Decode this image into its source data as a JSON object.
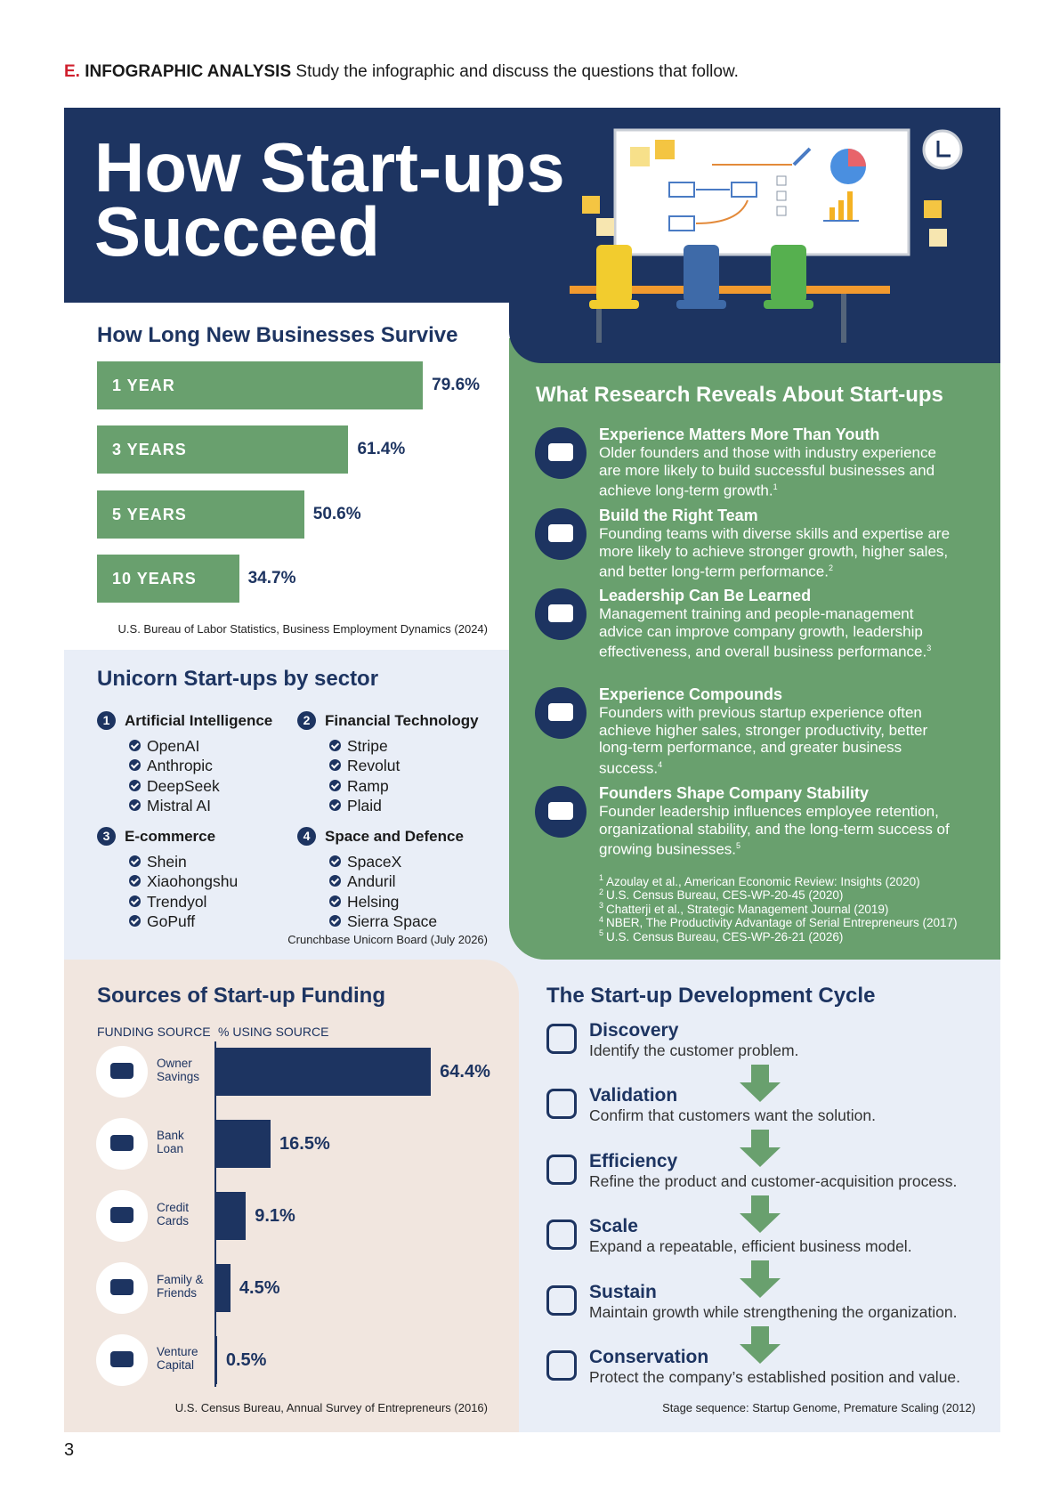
{
  "instruction": {
    "label": "E.",
    "heading": "INFOGRAPHIC ANALYSIS",
    "text": "Study the infographic and discuss the questions that follow."
  },
  "title": "How Start-ups Succeed",
  "survival": {
    "title": "How Long New Businesses Survive",
    "categories": [
      "1 YEAR",
      "3 YEARS",
      "5 YEARS",
      "10 YEARS"
    ],
    "values": [
      79.6,
      61.4,
      50.6,
      34.7
    ],
    "value_labels": [
      "79.6%",
      "61.4%",
      "50.6%",
      "34.7%"
    ],
    "source": "U.S. Bureau of Labor Statistics, Business Employment Dynamics (2024)"
  },
  "unicorns": {
    "title": "Unicorn Start-ups by sector",
    "sectors": [
      {
        "number": 1,
        "name": "Artificial Intelligence",
        "companies": [
          "OpenAI",
          "Anthropic",
          "DeepSeek",
          "Mistral AI"
        ]
      },
      {
        "number": 2,
        "name": "Financial Technology",
        "companies": [
          "Stripe",
          "Revolut",
          "Ramp",
          "Plaid"
        ]
      },
      {
        "number": 3,
        "name": "E-commerce",
        "companies": [
          "Shein",
          "Xiaohongshu",
          "Trendyol",
          "GoPuff"
        ]
      },
      {
        "number": 4,
        "name": "Space and Defence",
        "companies": [
          "SpaceX",
          "Anduril",
          "Helsing",
          "Sierra Space"
        ]
      }
    ],
    "source": "Crunchbase Unicorn Board (July 2026)"
  },
  "research": {
    "title": "What Research Reveals About Start-ups",
    "items": [
      {
        "heading": "Experience Matters More Than Youth",
        "text": "Older founders and those with industry experience are more likely to build successful businesses and achieve long-term growth.",
        "note": 1
      },
      {
        "heading": "Build the Right Team",
        "text": "Founding teams with diverse skills and expertise are more likely to achieve stronger growth, higher sales, and better long-term performance.",
        "note": 2
      },
      {
        "heading": "Leadership Can Be Learned",
        "text": "Management training and people-management advice can improve company growth, leadership effectiveness, and overall business performance.",
        "note": 3
      },
      {
        "heading": "Experience Compounds",
        "text": "Founders with previous startup experience often achieve higher sales, stronger productivity, better long-term performance, and greater business success.",
        "note": 4
      },
      {
        "heading": "Founders Shape Company Stability",
        "text": "Founder leadership influences employee retention, organizational stability, and the long-term success of growing businesses.",
        "note": 5
      }
    ],
    "footnotes": [
      {
        "marker": 1,
        "text": "Azoulay et al., American Economic Review: Insights (2020)"
      },
      {
        "marker": 2,
        "text": "U.S. Census Bureau, CES-WP-20-45 (2020)"
      },
      {
        "marker": 3,
        "text": "Chatterji et al., Strategic Management Journal (2019)"
      },
      {
        "marker": 4,
        "text": "NBER, The Productivity Advantage of Serial Entrepreneurs (2017)"
      },
      {
        "marker": 5,
        "text": "U.S. Census Bureau, CES-WP-26-21 (2026)"
      }
    ]
  },
  "funding": {
    "title": "Sources of Start-up Funding",
    "column_headers": [
      "FUNDING SOURCE",
      "% USING SOURCE"
    ],
    "categories": [
      "Owner Savings",
      "Bank Loan",
      "Credit Cards",
      "Family & Friends",
      "Venture Capital"
    ],
    "values": [
      64.4,
      16.5,
      9.1,
      4.5,
      0.5
    ],
    "value_labels": [
      "64.4%",
      "16.5%",
      "9.1%",
      "4.5%",
      "0.5%"
    ],
    "source": "U.S. Census Bureau, Annual Survey of Entrepreneurs (2016)"
  },
  "cycle": {
    "title": "The Start-up Development Cycle",
    "stages": [
      {
        "name": "Discovery",
        "text": "Identify the customer problem."
      },
      {
        "name": "Validation",
        "text": "Confirm that customers want the solution."
      },
      {
        "name": "Efficiency",
        "text": "Refine the product and customer-acquisition process."
      },
      {
        "name": "Scale",
        "text": "Expand a repeatable, efficient business model."
      },
      {
        "name": "Sustain",
        "text": "Maintain growth while strengthening the organization."
      },
      {
        "name": "Conservation",
        "text": "Protect the company’s established position and value."
      }
    ],
    "source": "Stage sequence: Startup Genome, Premature Scaling (2012)"
  },
  "page_number": 3
}
